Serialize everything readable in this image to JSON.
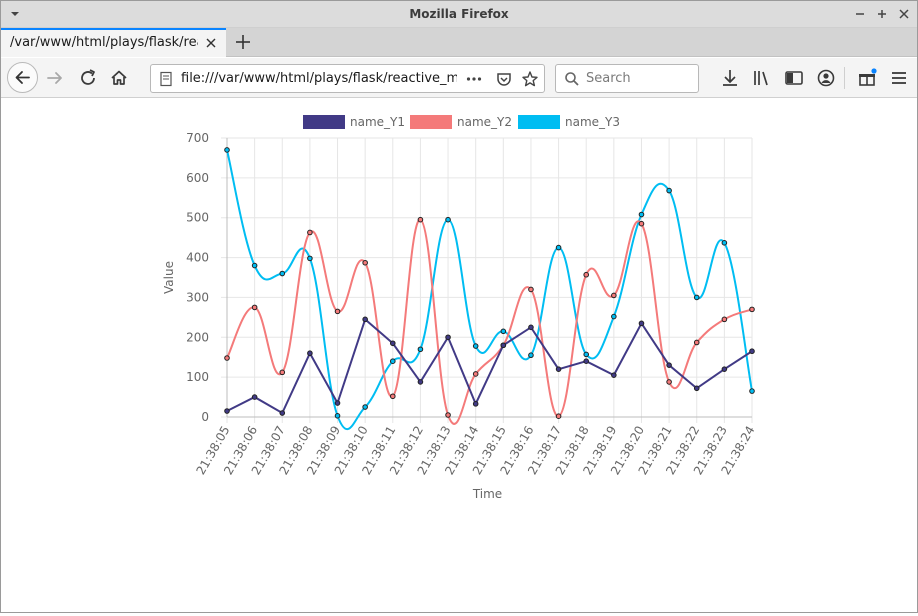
{
  "window": {
    "title": "Mozilla Firefox"
  },
  "tab": {
    "title": "/var/www/html/plays/flask/reactive_my_"
  },
  "navigation": {
    "url": "file:///var/www/html/plays/flask/reactive_my_",
    "search_placeholder": "Search"
  },
  "icons": [
    "window-menu-icon",
    "minimize-icon",
    "maximize-icon",
    "close-icon",
    "tab-close-icon",
    "new-tab-icon",
    "back-icon",
    "forward-icon",
    "reload-icon",
    "home-icon",
    "page-info-icon",
    "page-actions-icon",
    "pocket-icon",
    "bookmark-star-icon",
    "search-icon",
    "downloads-icon",
    "library-icon",
    "sidebar-icon",
    "account-icon",
    "extensions-icon",
    "hamburger-menu-icon"
  ],
  "chart_data": {
    "type": "line",
    "xlabel": "Time",
    "ylabel": "Value",
    "ylim": [
      0,
      700
    ],
    "yticks": [
      0,
      100,
      200,
      300,
      400,
      500,
      600,
      700
    ],
    "grid": true,
    "legend_position": "top",
    "categories": [
      "21:38:05",
      "21:38:06",
      "21:38:07",
      "21:38:08",
      "21:38:09",
      "21:38:10",
      "21:38:11",
      "21:38:12",
      "21:38:13",
      "21:38:14",
      "21:38:15",
      "21:38:16",
      "21:38:17",
      "21:38:18",
      "21:38:19",
      "21:38:20",
      "21:38:21",
      "21:38:22",
      "21:38:23",
      "21:38:24"
    ],
    "series": [
      {
        "name": "name_Y1",
        "color": "#413a86",
        "values": [
          15,
          50,
          10,
          160,
          35,
          245,
          185,
          88,
          200,
          33,
          180,
          225,
          120,
          140,
          105,
          235,
          130,
          72,
          120,
          165
        ]
      },
      {
        "name": "name_Y2",
        "color": "#f47a7a",
        "values": [
          148,
          275,
          112,
          463,
          265,
          387,
          52,
          495,
          5,
          108,
          180,
          320,
          2,
          357,
          305,
          485,
          88,
          187,
          245,
          270
        ]
      },
      {
        "name": "name_Y3",
        "color": "#00bdf2",
        "values": [
          670,
          380,
          360,
          398,
          3,
          25,
          140,
          170,
          495,
          178,
          215,
          155,
          425,
          157,
          252,
          508,
          568,
          300,
          437,
          65
        ]
      }
    ]
  }
}
